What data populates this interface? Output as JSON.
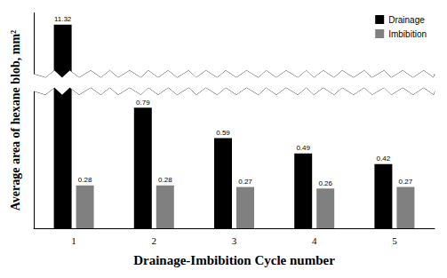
{
  "chart_data": {
    "type": "bar",
    "x_label": "Drainage-Imbibition Cycle number",
    "y_label": "Average area of hexane blob, mm²",
    "categories": [
      "1",
      "2",
      "3",
      "4",
      "5"
    ],
    "series": [
      {
        "name": "Drainage",
        "color": "#000000",
        "values": [
          11.32,
          0.79,
          0.59,
          0.49,
          0.42
        ]
      },
      {
        "name": "Imbibition",
        "color": "#808080",
        "values": [
          0.28,
          0.28,
          0.27,
          0.26,
          0.27
        ]
      }
    ],
    "ylim": [
      0,
      11.4
    ],
    "y_break": [
      0.9,
      11
    ],
    "grid": false,
    "legend": "upper right",
    "data_labels": true,
    "tick_labels": "x"
  }
}
